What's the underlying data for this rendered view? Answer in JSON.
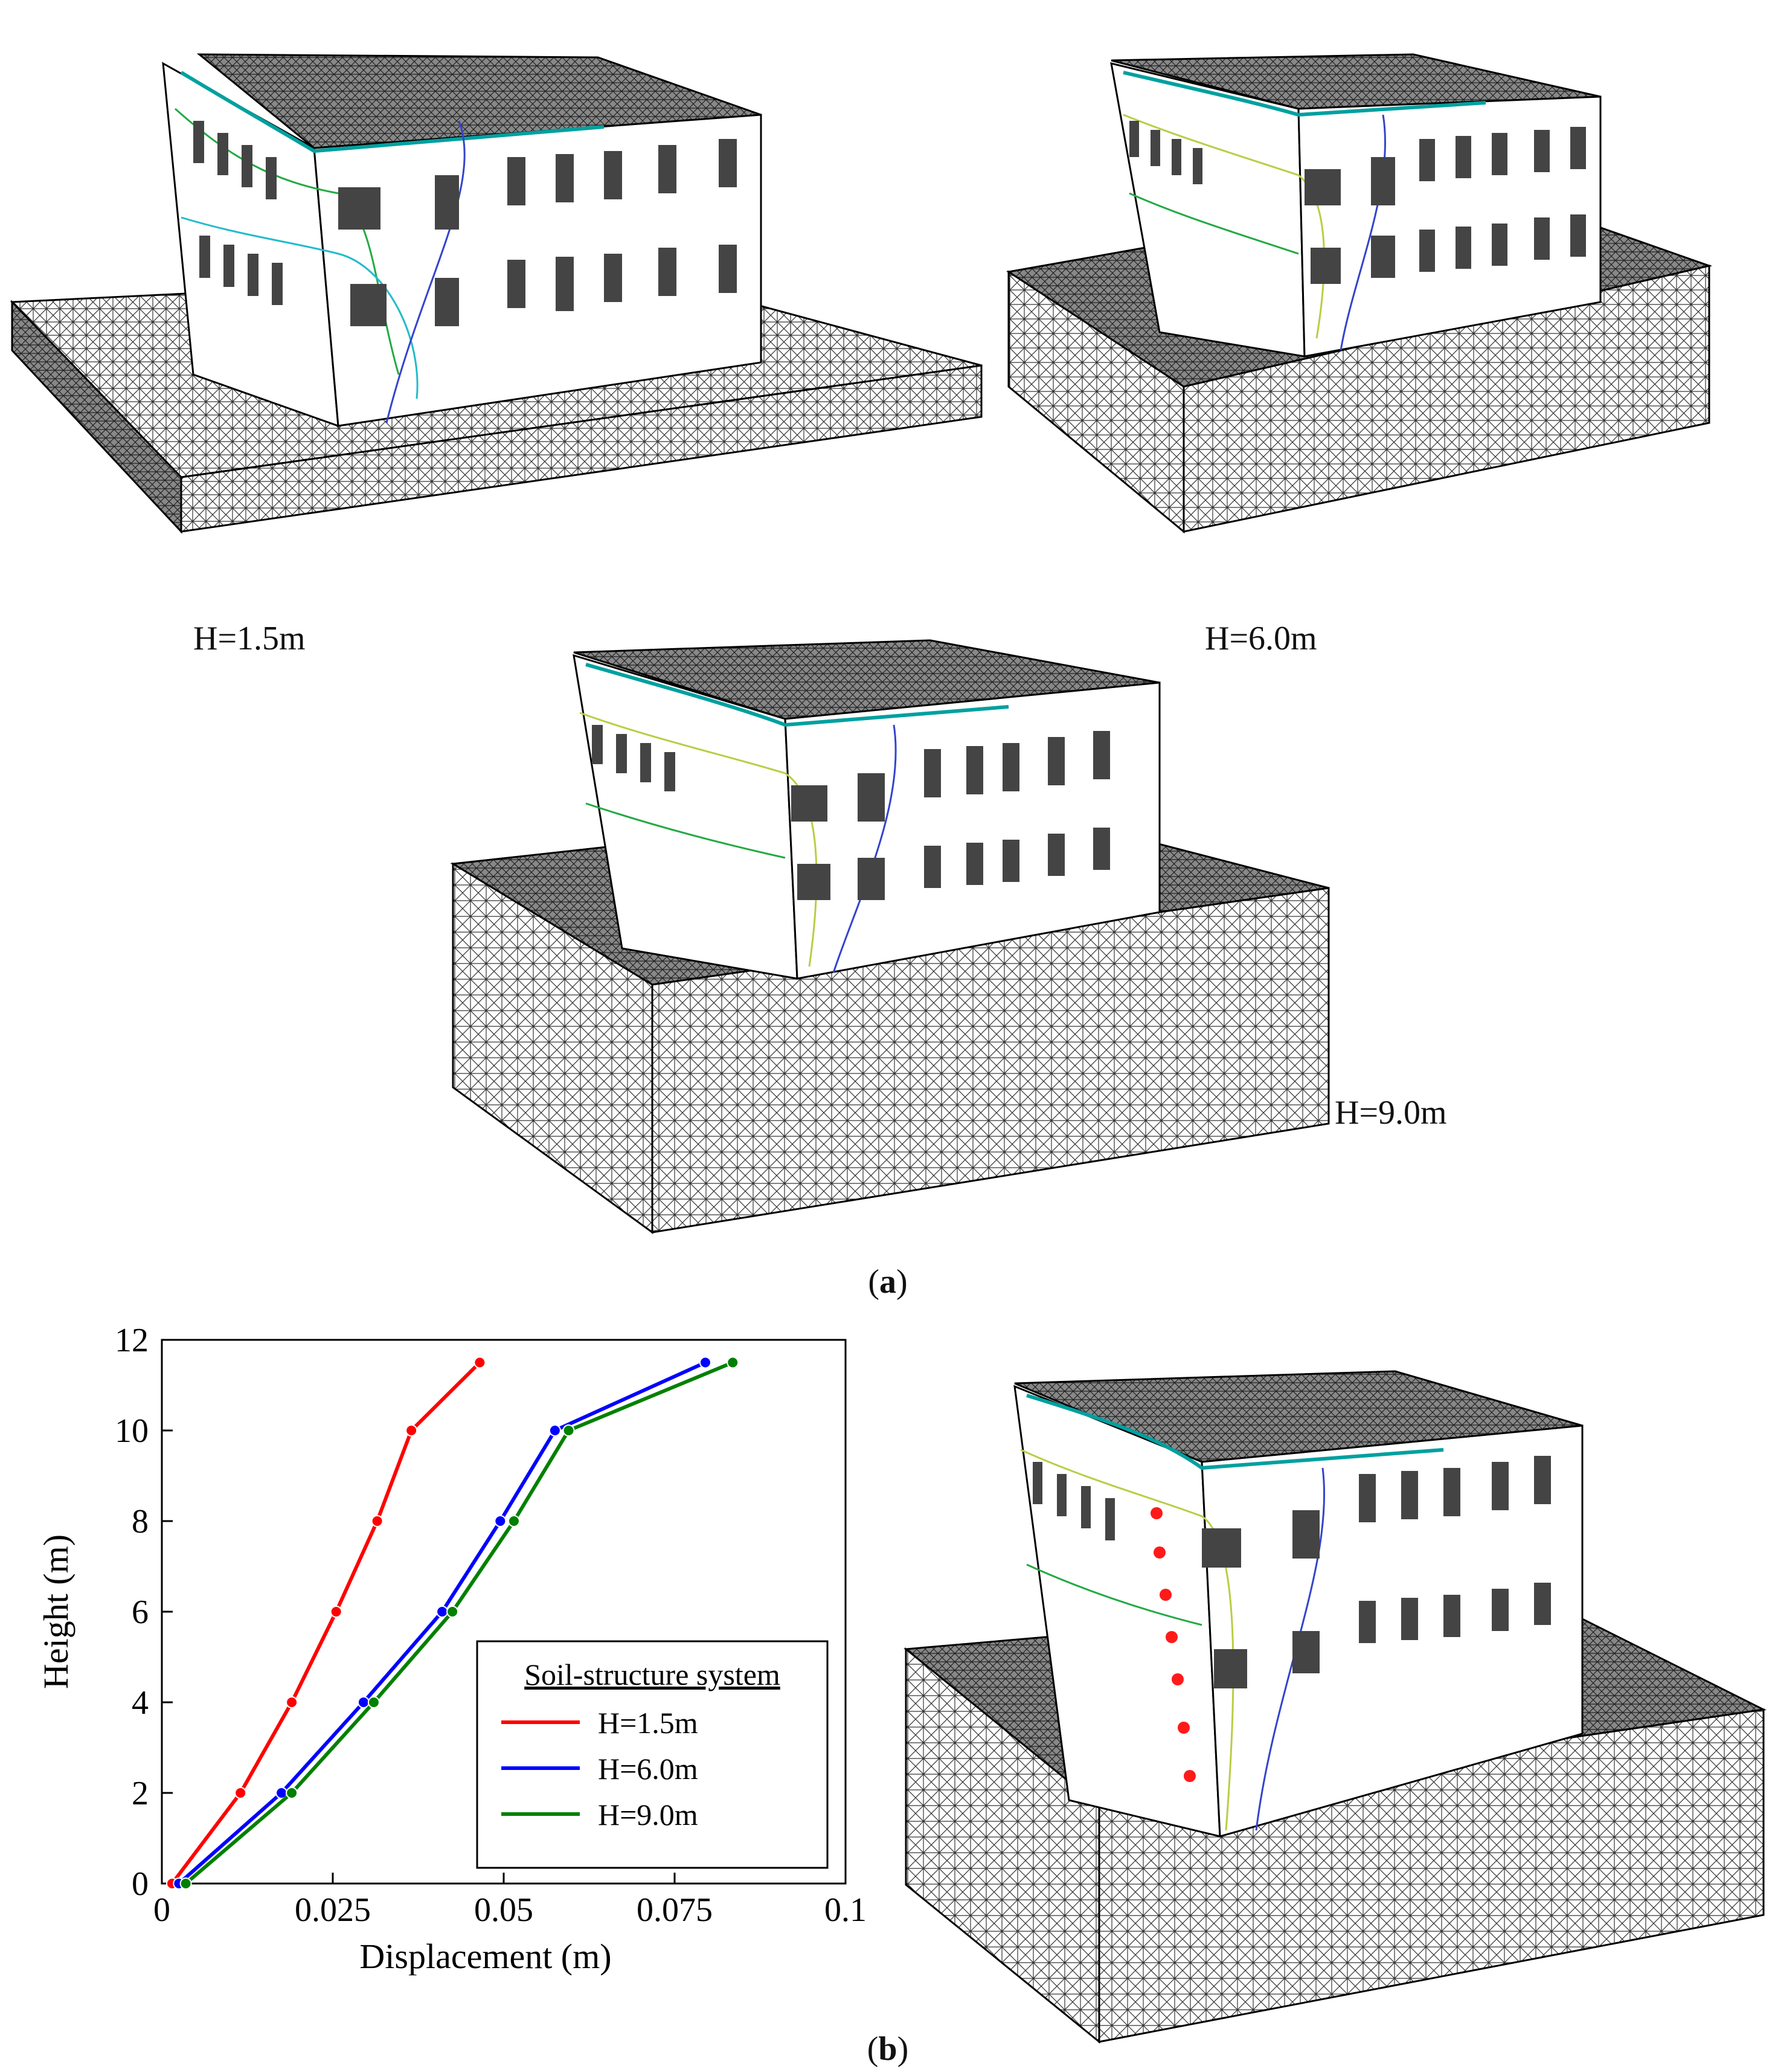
{
  "panel_a": {
    "label_open": "(",
    "label_letter": "a",
    "label_close": ")",
    "models": [
      {
        "caption": "H=1.5m"
      },
      {
        "caption": "H=6.0m"
      },
      {
        "caption": "H=9.0m"
      }
    ]
  },
  "panel_b": {
    "label_open": "(",
    "label_letter": "b",
    "label_close": ")"
  },
  "chart_data": {
    "type": "line",
    "xlabel": "Displacement (m)",
    "ylabel": "Height (m)",
    "xlim": [
      0,
      0.1
    ],
    "ylim": [
      0,
      12
    ],
    "xticks": [
      0,
      0.025,
      0.05,
      0.075,
      0.1
    ],
    "xtick_labels": [
      "0",
      "0.025",
      "0.05",
      "0.075",
      "0.1"
    ],
    "yticks": [
      0,
      2,
      4,
      6,
      8,
      10,
      12
    ],
    "ytick_labels": [
      "0",
      "2",
      "4",
      "6",
      "8",
      "10",
      "12"
    ],
    "grid": false,
    "legend_title": "Soil-structure system",
    "legend_position": "lower-right",
    "series": [
      {
        "name": "H=1.5m",
        "color": "#ff0000",
        "x": [
          0.0015,
          0.0115,
          0.019,
          0.0255,
          0.0315,
          0.0365,
          0.0465
        ],
        "y": [
          0,
          2,
          4,
          6,
          8,
          10,
          11.5
        ]
      },
      {
        "name": "H=6.0m",
        "color": "#0000ff",
        "x": [
          0.0025,
          0.0175,
          0.0295,
          0.041,
          0.0495,
          0.0575,
          0.0795
        ],
        "y": [
          0,
          2,
          4,
          6,
          8,
          10,
          11.5
        ]
      },
      {
        "name": "H=9.0m",
        "color": "#008000",
        "x": [
          0.0035,
          0.019,
          0.031,
          0.0425,
          0.0515,
          0.0595,
          0.0835
        ],
        "y": [
          0,
          2,
          4,
          6,
          8,
          10,
          11.5
        ]
      }
    ]
  }
}
